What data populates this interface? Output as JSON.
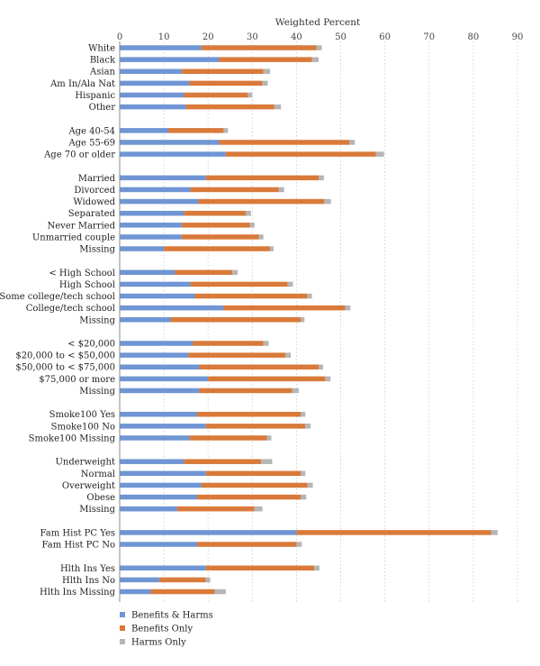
{
  "chart_data": {
    "type": "bar",
    "orientation": "horizontal",
    "stacked": true,
    "title": "",
    "xlabel": "Weighted Percent",
    "xlabel_position": "top",
    "xlim": [
      0,
      90
    ],
    "xticks": [
      0,
      10,
      20,
      30,
      40,
      50,
      60,
      70,
      80,
      90
    ],
    "grid": "vertical-dotted",
    "legend_position": "bottom-left",
    "categories": [
      "White",
      "Black",
      "Asian",
      "Am In/Ala Nat",
      "Hispanic",
      "Other",
      "",
      "Age 40-54",
      "Age 55-69",
      "Age 70 or older",
      "",
      "Married",
      "Divorced",
      "Widowed",
      "Separated",
      "Never Married",
      "Unmarried couple",
      "Missing",
      "",
      "< High School",
      "High School",
      "Some college/tech school",
      "College/tech school",
      "Missing",
      "",
      "< $20,000",
      "$20,000 to < $50,000",
      "$50,000 to < $75,000",
      "$75,000 or more",
      "Missing",
      "",
      "Smoke100 Yes",
      "Smoke100 No",
      "Smoke100 Missing",
      "",
      "Underweight",
      "Normal",
      "Overweight",
      "Obese",
      "Missing",
      "",
      "Fam Hist PC Yes",
      "Fam Hist PC No",
      "",
      "Hlth Ins Yes",
      "Hlth Ins No",
      "Hlth Ins Missing"
    ],
    "series": [
      {
        "name": "Benefits & Harms",
        "color": "#6f95d4",
        "values": [
          18.5,
          22.5,
          14,
          15.8,
          14.5,
          15,
          null,
          11,
          22.5,
          24,
          null,
          19.5,
          16,
          17.8,
          14.5,
          14,
          14,
          10,
          null,
          12.5,
          16,
          17,
          23.5,
          11.5,
          null,
          16.5,
          15.5,
          18,
          20,
          18,
          null,
          17.5,
          19.5,
          15.8,
          null,
          14.5,
          19.5,
          18.5,
          17.5,
          13,
          null,
          40,
          17.5,
          null,
          19.5,
          9,
          7
        ]
      },
      {
        "name": "Benefits Only",
        "color": "#d97a3a",
        "values": [
          26,
          21,
          18.5,
          16.5,
          14.5,
          20,
          null,
          12.5,
          29.5,
          34,
          null,
          25.5,
          20,
          28.5,
          14,
          15.5,
          17.5,
          24,
          null,
          13,
          22,
          25.5,
          27.5,
          29.5,
          null,
          16,
          22,
          27,
          26.5,
          21,
          null,
          23.5,
          22.5,
          17.5,
          null,
          17.5,
          21.5,
          24,
          23.5,
          17.5,
          null,
          44,
          22.5,
          null,
          24.5,
          10.5,
          14.5
        ]
      },
      {
        "name": "Harms Only",
        "color": "#b5b5b5",
        "values": [
          1.2,
          1.5,
          1.5,
          1.2,
          1,
          1.5,
          null,
          1,
          1.2,
          1.8,
          null,
          1.2,
          1.2,
          1.5,
          1.2,
          1,
          1,
          0.8,
          null,
          1.2,
          1.2,
          1,
          1.2,
          0.8,
          null,
          1.2,
          1.2,
          1,
          1.2,
          1.5,
          null,
          1,
          1.2,
          1,
          null,
          2.5,
          1,
          1.2,
          1.2,
          1.8,
          null,
          1.5,
          1.2,
          null,
          1.2,
          1,
          2.5
        ]
      }
    ]
  }
}
